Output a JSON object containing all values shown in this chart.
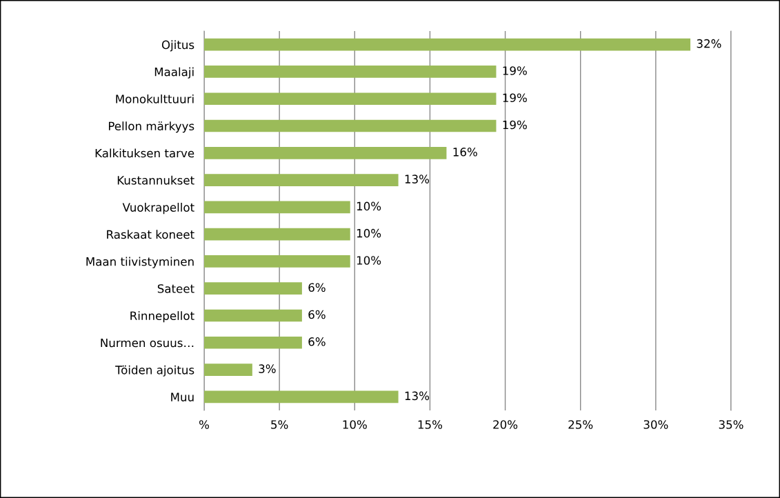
{
  "chart_data": {
    "type": "bar",
    "orientation": "horizontal",
    "categories": [
      "Ojitus",
      "Maalaji",
      "Monokulttuuri",
      "Pellon märkyys",
      "Kalkituksen tarve",
      "Kustannukset",
      "Vuokrapellot",
      "Raskaat koneet",
      "Maan tiivistyminen",
      "Sateet",
      "Rinnepellot",
      "Nurmen osuus…",
      "Töiden ajoitus",
      "Muu"
    ],
    "values": [
      32.3,
      19.4,
      19.4,
      19.4,
      16.1,
      12.9,
      9.7,
      9.7,
      9.7,
      6.5,
      6.5,
      6.5,
      3.2,
      12.9
    ],
    "value_labels": [
      "32%",
      "19%",
      "19%",
      "19%",
      "16%",
      "13%",
      "10%",
      "10%",
      "10%",
      "6%",
      "6%",
      "6%",
      "3%",
      "13%"
    ],
    "color": "#9bbb59",
    "xlim": [
      0,
      35
    ],
    "xticks": [
      {
        "value": 0,
        "label": "%"
      },
      {
        "value": 5,
        "label": "5%"
      },
      {
        "value": 10,
        "label": "10%"
      },
      {
        "value": 15,
        "label": "15%"
      },
      {
        "value": 20,
        "label": "20%"
      },
      {
        "value": 25,
        "label": "25%"
      },
      {
        "value": 30,
        "label": "30%"
      },
      {
        "value": 35,
        "label": "35%"
      }
    ],
    "grid": "x"
  }
}
